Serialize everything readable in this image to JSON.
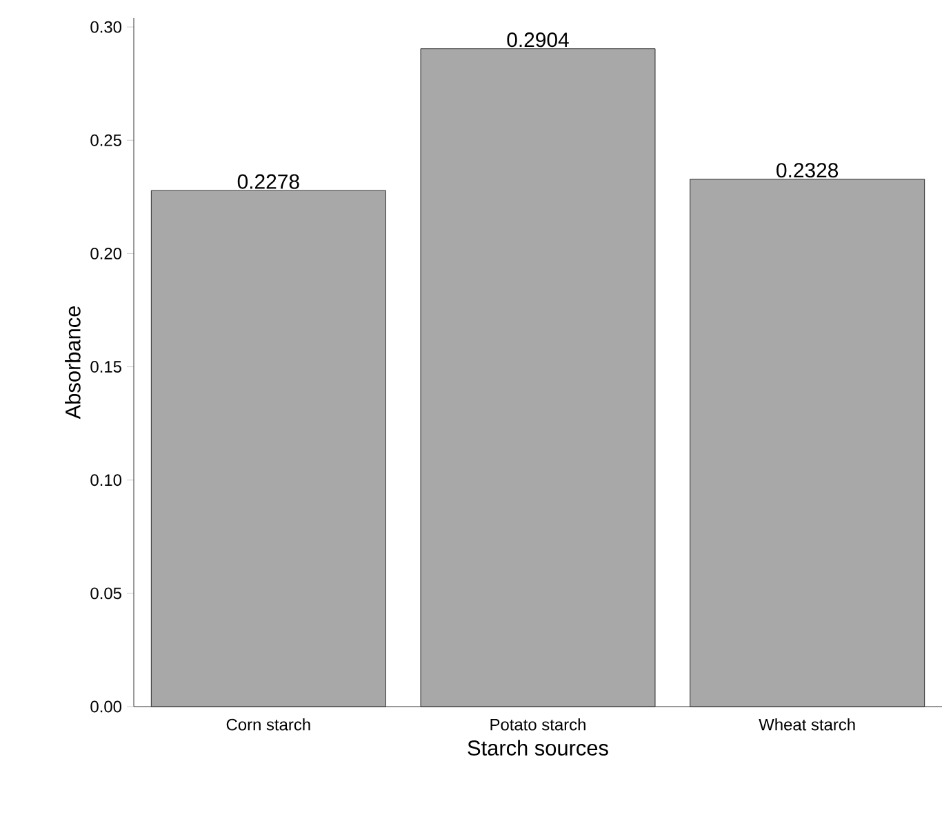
{
  "chart_data": {
    "type": "bar",
    "xlabel": "Starch sources",
    "ylabel": "Absorbance",
    "categories": [
      "Corn starch",
      "Potato starch",
      "Wheat starch"
    ],
    "values": [
      0.2278,
      0.2904,
      0.2328
    ],
    "color": "#a8a8a8",
    "data_labels": true,
    "ylim": [
      0,
      0.304
    ],
    "yticks": [
      {
        "value": 0,
        "label": "0.00"
      },
      {
        "value": 0.05,
        "label": "0.05"
      },
      {
        "value": 0.1,
        "label": "0.10"
      },
      {
        "value": 0.15,
        "label": "0.15"
      },
      {
        "value": 0.2,
        "label": "0.20"
      },
      {
        "value": 0.25,
        "label": "0.25"
      },
      {
        "value": 0.3,
        "label": "0.30"
      }
    ]
  }
}
